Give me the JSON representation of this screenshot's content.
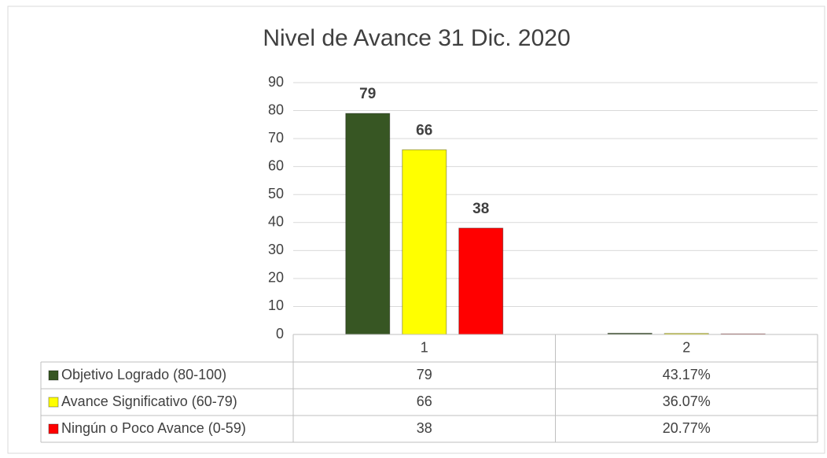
{
  "chart_data": {
    "type": "bar",
    "title": "Nivel de Avance 31 Dic. 2020",
    "categories": [
      "1",
      "2"
    ],
    "series": [
      {
        "name": "Objetivo Logrado (80-100)",
        "color": "#375623",
        "values": [
          79,
          0.4317
        ],
        "value_labels": [
          "79",
          "43.17%"
        ]
      },
      {
        "name": "Avance Significativo (60-79)",
        "color": "#ffff00",
        "values": [
          66,
          0.3607
        ],
        "value_labels": [
          "66",
          "36.07%"
        ]
      },
      {
        "name": "Ningún o Poco Avance (0-59)",
        "color": "#ff0000",
        "values": [
          38,
          0.2077
        ],
        "value_labels": [
          "38",
          "20.77%"
        ]
      }
    ],
    "ylim": [
      0,
      90
    ],
    "yticks": [
      0,
      10,
      20,
      30,
      40,
      50,
      60,
      70,
      80,
      90
    ],
    "grid": true,
    "data_table": true
  }
}
